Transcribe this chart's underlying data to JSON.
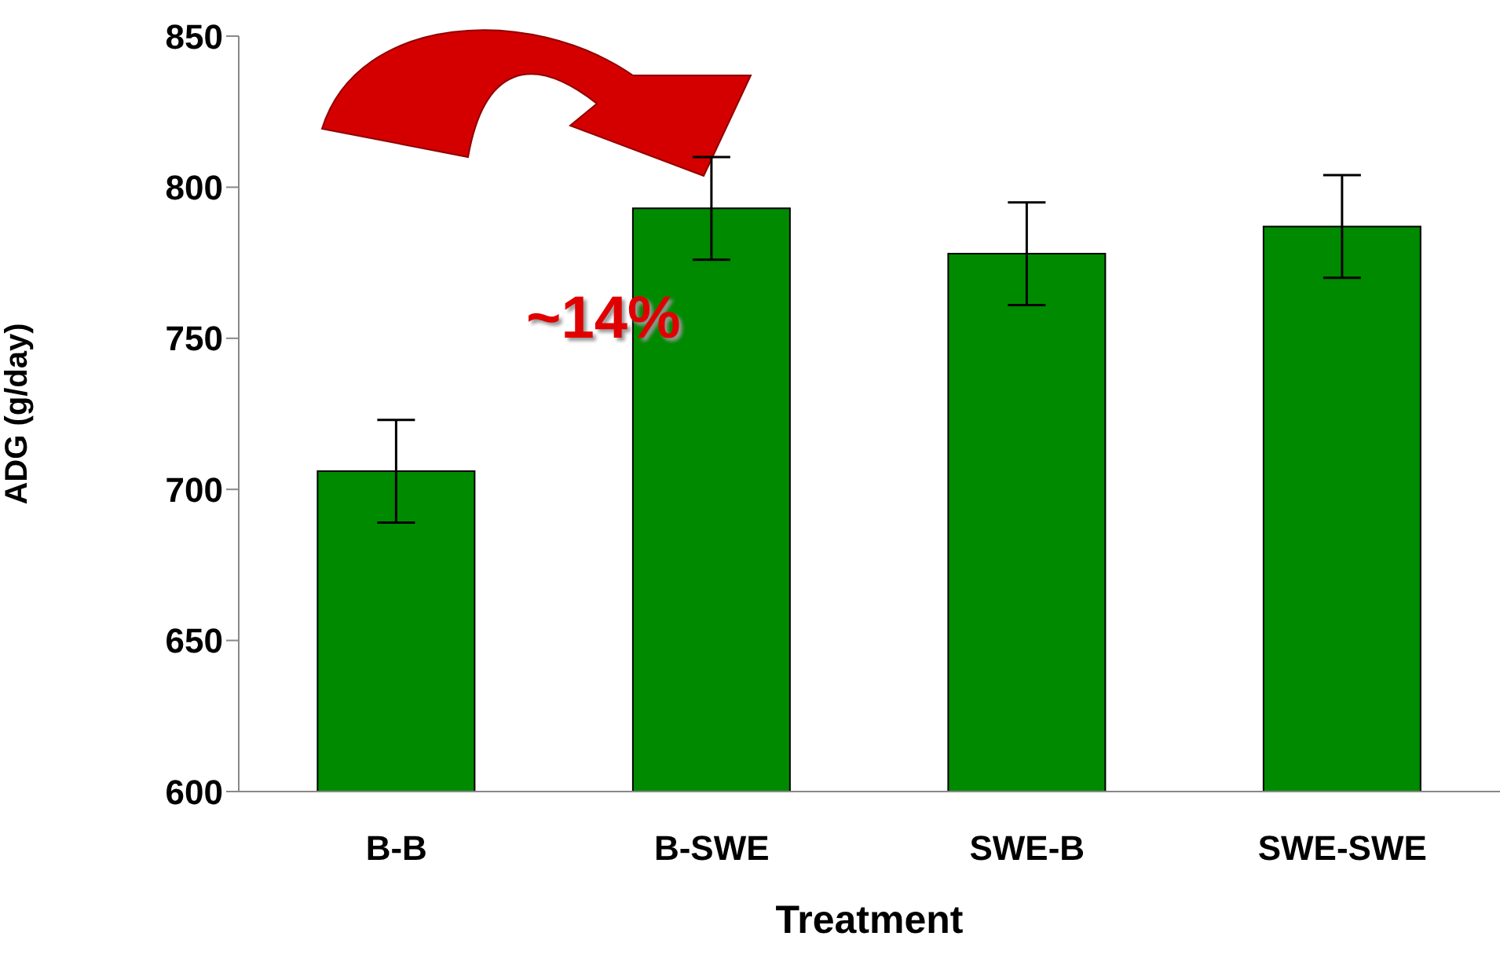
{
  "chart_data": {
    "type": "bar",
    "xlabel": "Treatment",
    "ylabel": "ADG (g/day)",
    "categories": [
      "B-B",
      "B-SWE",
      "SWE-B",
      "SWE-SWE"
    ],
    "values": [
      706,
      793,
      778,
      787
    ],
    "errors": [
      17,
      17,
      17,
      17
    ],
    "color": "#008a00",
    "ylim": [
      600,
      850
    ],
    "yticks": [
      600,
      650,
      700,
      750,
      800,
      850
    ],
    "annotations": [
      "~14%"
    ]
  }
}
